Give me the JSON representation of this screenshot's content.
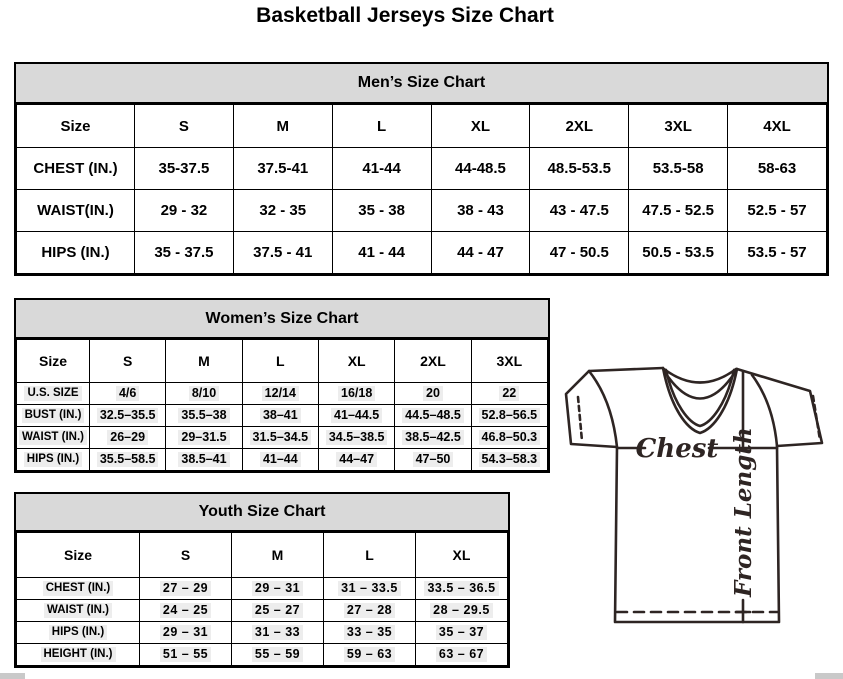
{
  "page_title": "Basketball Jerseys Size Chart",
  "tables": {
    "men": {
      "title": "Men’s Size Chart",
      "header": [
        "Size",
        "S",
        "M",
        "L",
        "XL",
        "2XL",
        "3XL",
        "4XL"
      ],
      "rows": [
        [
          "CHEST (IN.)",
          "35-37.5",
          "37.5-41",
          "41-44",
          "44-48.5",
          "48.5-53.5",
          "53.5-58",
          "58-63"
        ],
        [
          "WAIST(IN.)",
          "29 - 32",
          "32 - 35",
          "35 - 38",
          "38 - 43",
          "43 - 47.5",
          "47.5 - 52.5",
          "52.5 - 57"
        ],
        [
          "HIPS (IN.)",
          "35 - 37.5",
          "37.5 - 41",
          "41 - 44",
          "44 - 47",
          "47 - 50.5",
          "50.5 - 53.5",
          "53.5 - 57"
        ]
      ]
    },
    "women": {
      "title": "Women’s Size Chart",
      "header": [
        "Size",
        "S",
        "M",
        "L",
        "XL",
        "2XL",
        "3XL"
      ],
      "rows": [
        [
          "U.S. SIZE",
          "4/6",
          "8/10",
          "12/14",
          "16/18",
          "20",
          "22"
        ],
        [
          "BUST (IN.)",
          "32.5–35.5",
          "35.5–38",
          "38–41",
          "41–44.5",
          "44.5–48.5",
          "52.8–56.5"
        ],
        [
          "WAIST (IN.)",
          "26–29",
          "29–31.5",
          "31.5–34.5",
          "34.5–38.5",
          "38.5–42.5",
          "46.8–50.3"
        ],
        [
          "HIPS (IN.)",
          "35.5–58.5",
          "38.5–41",
          "41–44",
          "44–47",
          "47–50",
          "54.3–58.3"
        ]
      ]
    },
    "youth": {
      "title": "Youth Size Chart",
      "header": [
        "Size",
        "S",
        "M",
        "L",
        "XL"
      ],
      "rows": [
        [
          "CHEST (IN.)",
          "27 – 29",
          "29 – 31",
          "31 – 33.5",
          "33.5 – 36.5"
        ],
        [
          "WAIST (IN.)",
          "24 – 25",
          "25 – 27",
          "27 – 28",
          "28 – 29.5"
        ],
        [
          "HIPS (IN.)",
          "29 – 31",
          "31 – 33",
          "33 – 35",
          "35 – 37"
        ],
        [
          "HEIGHT (IN.)",
          "51 – 55",
          "55 – 59",
          "59 – 63",
          "63 – 67"
        ]
      ]
    }
  },
  "diagram": {
    "chest_label": "Chest",
    "front_length_label": "Front Length"
  },
  "colors": {
    "table_header_fill": "#d9d9d9",
    "table_border": "#000000",
    "jersey_stroke": "#2e2523",
    "data_highlight": "#ededed"
  }
}
